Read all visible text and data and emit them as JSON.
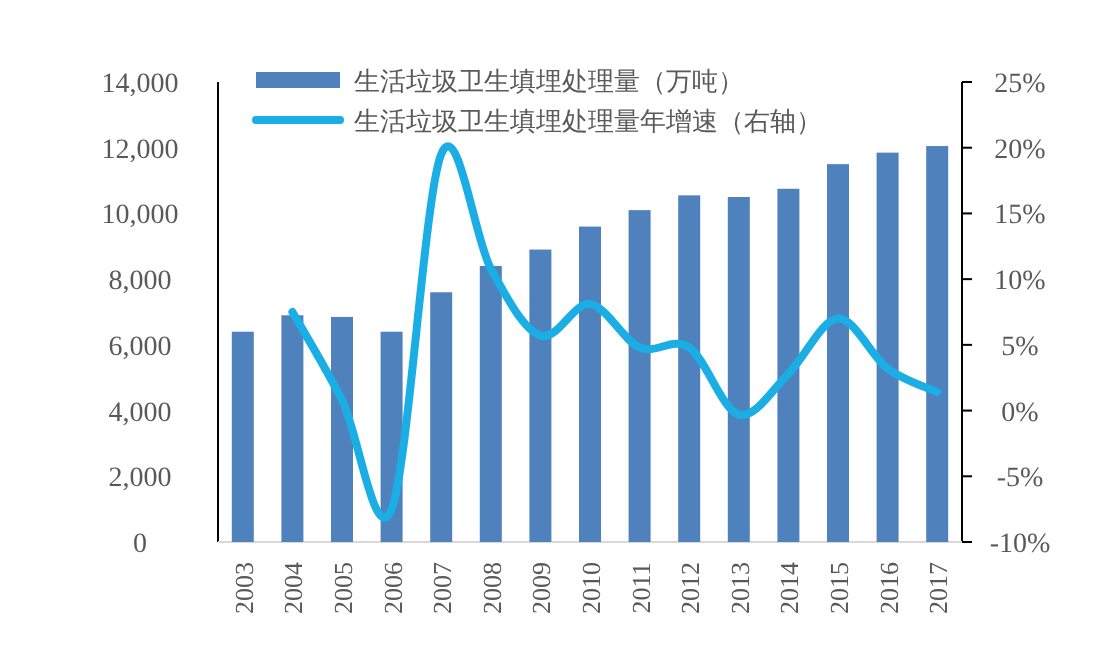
{
  "chart_data": {
    "type": "bar",
    "categories": [
      "2003",
      "2004",
      "2005",
      "2006",
      "2007",
      "2008",
      "2009",
      "2010",
      "2011",
      "2012",
      "2013",
      "2014",
      "2015",
      "2016",
      "2017"
    ],
    "series": [
      {
        "name": "生活垃圾卫生填埋处理量（万吨）",
        "color": "#4f81bd",
        "values": [
          6400,
          6900,
          6850,
          6400,
          7600,
          8400,
          8900,
          9600,
          10100,
          10550,
          10500,
          10750,
          11500,
          11850,
          12050
        ]
      },
      {
        "name": "生活垃圾卫生填埋处理量年增速（右轴）",
        "type": "line",
        "axis": "y2",
        "color": "#1aaee5",
        "values": [
          null,
          7.5,
          0.8,
          -7.5,
          19.5,
          10.8,
          5.7,
          8.1,
          4.8,
          4.8,
          -0.3,
          2.8,
          7.0,
          3.2,
          1.4
        ]
      }
    ],
    "ylim": [
      0,
      14000
    ],
    "yticks": [
      0,
      {
        "value": 2000,
        "label": "2,000"
      },
      {
        "value": 4000,
        "label": "4,000"
      },
      {
        "value": 6000,
        "label": "6,000"
      },
      {
        "value": 8000,
        "label": "8,000"
      },
      {
        "value": 10000,
        "label": "10,000"
      },
      {
        "value": 12000,
        "label": "12,000"
      },
      {
        "value": 14000,
        "label": "14,000"
      }
    ],
    "y2lim": [
      -10,
      25
    ],
    "y2ticks": [
      {
        "value": -10,
        "label": "-10%"
      },
      {
        "value": -5,
        "label": "-5%"
      },
      {
        "value": 0,
        "label": "0%"
      },
      {
        "value": 5,
        "label": "5%"
      },
      {
        "value": 10,
        "label": "10%"
      },
      {
        "value": 15,
        "label": "15%"
      },
      {
        "value": 20,
        "label": "20%"
      },
      {
        "value": 25,
        "label": "25%"
      }
    ],
    "grid": false,
    "legend": "top left",
    "marker": "none",
    "line_style": "solid"
  }
}
